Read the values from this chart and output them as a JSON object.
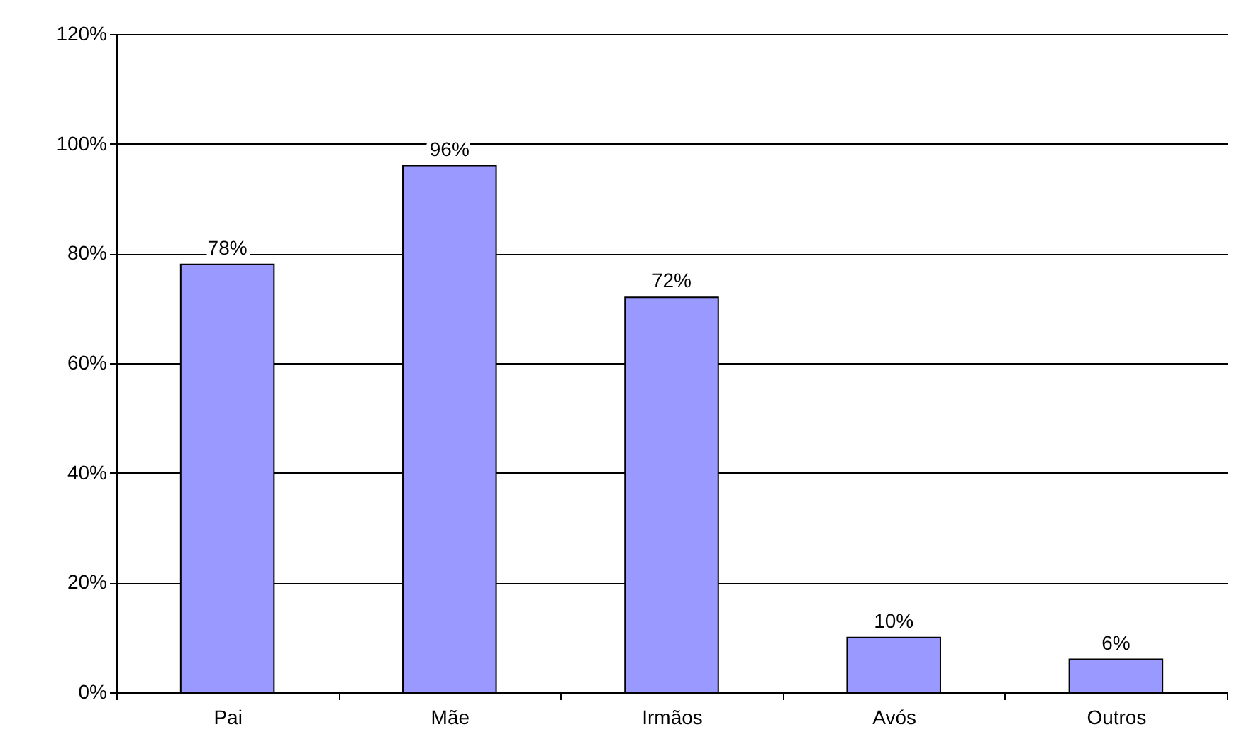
{
  "chart_data": {
    "type": "bar",
    "categories": [
      "Pai",
      "Mãe",
      "Irmãos",
      "Avós",
      "Outros"
    ],
    "values": [
      78,
      96,
      72,
      10,
      6
    ],
    "value_labels": [
      "78%",
      "96%",
      "72%",
      "10%",
      "6%"
    ],
    "color": "#9999ff",
    "ylim": [
      0,
      120
    ],
    "yticks": [
      {
        "value": 0,
        "label": "0%"
      },
      {
        "value": 20,
        "label": "20%"
      },
      {
        "value": 40,
        "label": "40%"
      },
      {
        "value": 60,
        "label": "60%"
      },
      {
        "value": 80,
        "label": "80%"
      },
      {
        "value": 100,
        "label": "100%"
      },
      {
        "value": 120,
        "label": "120%"
      }
    ],
    "grid": "y"
  }
}
